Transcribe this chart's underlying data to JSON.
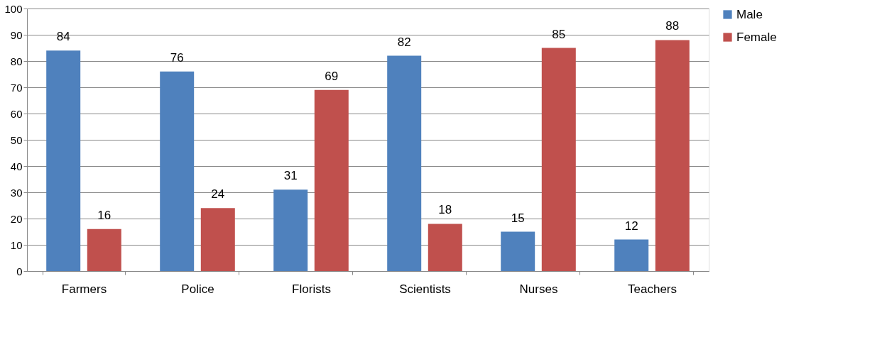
{
  "chart_data": {
    "type": "bar",
    "categories": [
      "Farmers",
      "Police",
      "Florists",
      "Scientists",
      "Nurses",
      "Teachers"
    ],
    "series": [
      {
        "name": "Male",
        "color": "#4f81bd",
        "values": [
          84,
          76,
          31,
          82,
          15,
          12
        ]
      },
      {
        "name": "Female",
        "color": "#c0504d",
        "values": [
          16,
          24,
          69,
          18,
          85,
          88
        ]
      }
    ],
    "ylim": [
      0,
      100
    ],
    "yticks": [
      0,
      10,
      20,
      30,
      40,
      50,
      60,
      70,
      80,
      90,
      100
    ],
    "grid": "y",
    "legend": "right",
    "data_labels": true
  }
}
